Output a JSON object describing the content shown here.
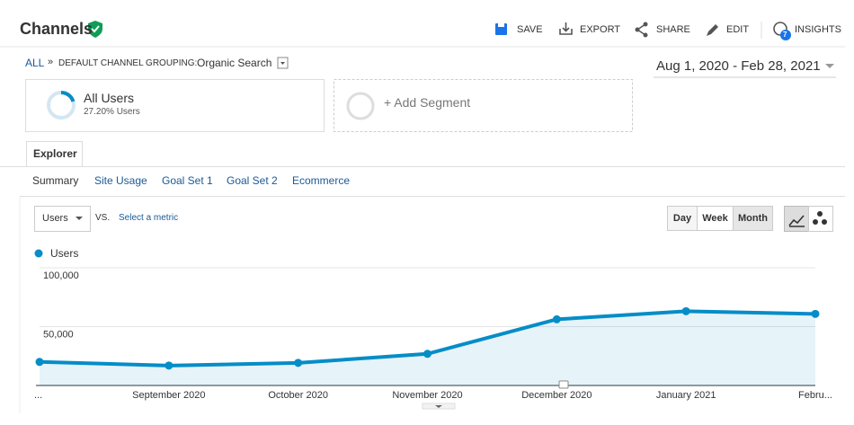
{
  "header": {
    "title": "Channels"
  },
  "toolbar": {
    "save": "SAVE",
    "export": "EXPORT",
    "share": "SHARE",
    "edit": "EDIT",
    "insights": "INSIGHTS",
    "insights_badge": "7"
  },
  "breadcrumb": {
    "all": "ALL",
    "separator": "»",
    "grouping": "DEFAULT CHANNEL GROUPING:",
    "channel": "Organic Search"
  },
  "date_range": "Aug 1, 2020 - Feb 28, 2021",
  "segments": {
    "active_name": "All Users",
    "active_share": "27.20% Users",
    "add": "+ Add Segment"
  },
  "tabs": [
    "Explorer"
  ],
  "subtabs": [
    "Summary",
    "Site Usage",
    "Goal Set 1",
    "Goal Set 2",
    "Ecommerce"
  ],
  "controls": {
    "metric": "Users",
    "vs": "VS.",
    "select_metric": "Select a metric",
    "granularity": [
      "Day",
      "Week",
      "Month"
    ]
  },
  "chart_data": {
    "type": "line",
    "categories": [
      "...",
      "September 2020",
      "October 2020",
      "November 2020",
      "December 2020",
      "January 2021",
      "Febru..."
    ],
    "series": [
      {
        "name": "Users",
        "color": "#058dc7",
        "values": [
          20000,
          16900,
          19200,
          26900,
          56200,
          63100,
          60800
        ]
      }
    ],
    "ylim": [
      0,
      100000
    ],
    "yticks": [
      {
        "value": 50000,
        "label": "50,000"
      },
      {
        "value": 100000,
        "label": "100,000"
      }
    ],
    "grid": true
  }
}
